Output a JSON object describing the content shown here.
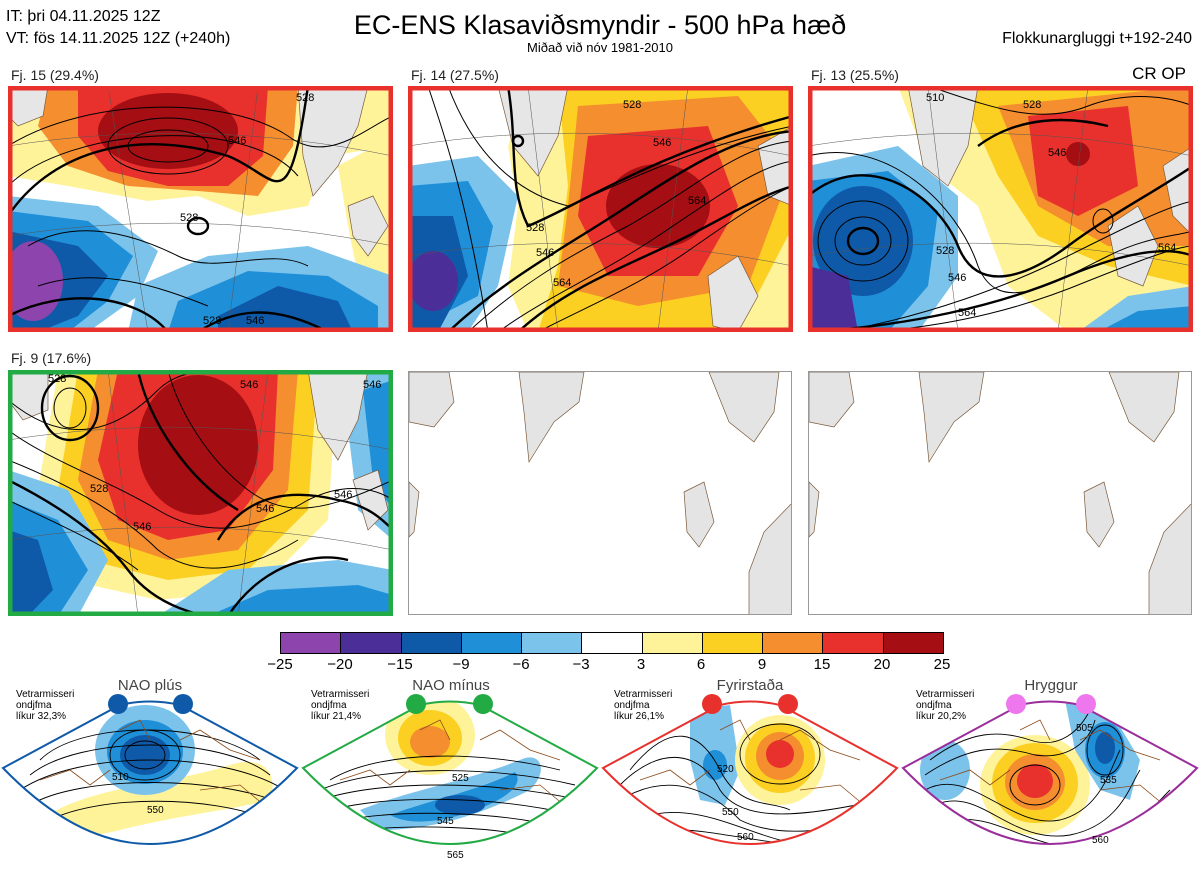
{
  "header": {
    "issue_time": "IT: þri 04.11.2025 12Z",
    "valid_time": "VT: fös 14.11.2025 12Z  (+240h)",
    "title": "EC-ENS Klasaviðsmyndir - 500 hPa hæð",
    "subtitle": "Miðað við nóv 1981-2010",
    "window": "Flokkunargluggi t+192-240",
    "flag": "CR OP"
  },
  "clusters": [
    {
      "label": "Fj. 15 (29.4%)",
      "frame_color": "#e8312c",
      "contours": [
        "546",
        "528",
        "528",
        "546",
        "528"
      ]
    },
    {
      "label": "Fj. 14 (27.5%)",
      "frame_color": "#e8312c",
      "contours": [
        "528",
        "546",
        "564",
        "528",
        "546",
        "564"
      ]
    },
    {
      "label": "Fj. 13 (25.5%)",
      "frame_color": "#e8312c",
      "contours": [
        "510",
        "528",
        "546",
        "528",
        "546",
        "564",
        "564"
      ]
    },
    {
      "label": "Fj. 9 (17.6%)",
      "frame_color": "#22aa44",
      "contours": [
        "528",
        "546",
        "546",
        "528",
        "546",
        "546",
        "546"
      ]
    },
    {
      "label": "",
      "frame_color": "#bbbbbb",
      "contours": []
    },
    {
      "label": "",
      "frame_color": "#bbbbbb",
      "contours": []
    }
  ],
  "colorbar": {
    "colors": [
      "#8e44ad",
      "#4b2e98",
      "#0f5aa8",
      "#1f8fd8",
      "#7cc3ec",
      "#ffffff",
      "#fff39a",
      "#fbd022",
      "#f58e2f",
      "#e8312c",
      "#a50e12"
    ],
    "labels": [
      "−25",
      "−20",
      "−15",
      "−9",
      "−6",
      "−3",
      "3",
      "6",
      "9",
      "15",
      "20",
      "25"
    ]
  },
  "regimes": [
    {
      "title": "NAO plús",
      "note": [
        "Vetrarmisseri",
        "ondjfma",
        "líkur 32,3%"
      ],
      "color": "#0f5aa8",
      "contours": [
        "510",
        "550"
      ]
    },
    {
      "title": "NAO mínus",
      "note": [
        "Vetrarmisseri",
        "ondjfma",
        "líkur 21,4%"
      ],
      "color": "#22aa44",
      "contours": [
        "525",
        "545",
        "565"
      ]
    },
    {
      "title": "Fyrirstaða",
      "note": [
        "Vetrarmisseri",
        "ondjfma",
        "líkur 26,1%"
      ],
      "color": "#e8312c",
      "contours": [
        "520",
        "550",
        "560"
      ]
    },
    {
      "title": "Hryggur",
      "note": [
        "Vetrarmisseri",
        "ondjfma",
        "líkur 20,2%"
      ],
      "color": "#9b2d9b",
      "contours": [
        "505",
        "535",
        "560"
      ]
    }
  ]
}
